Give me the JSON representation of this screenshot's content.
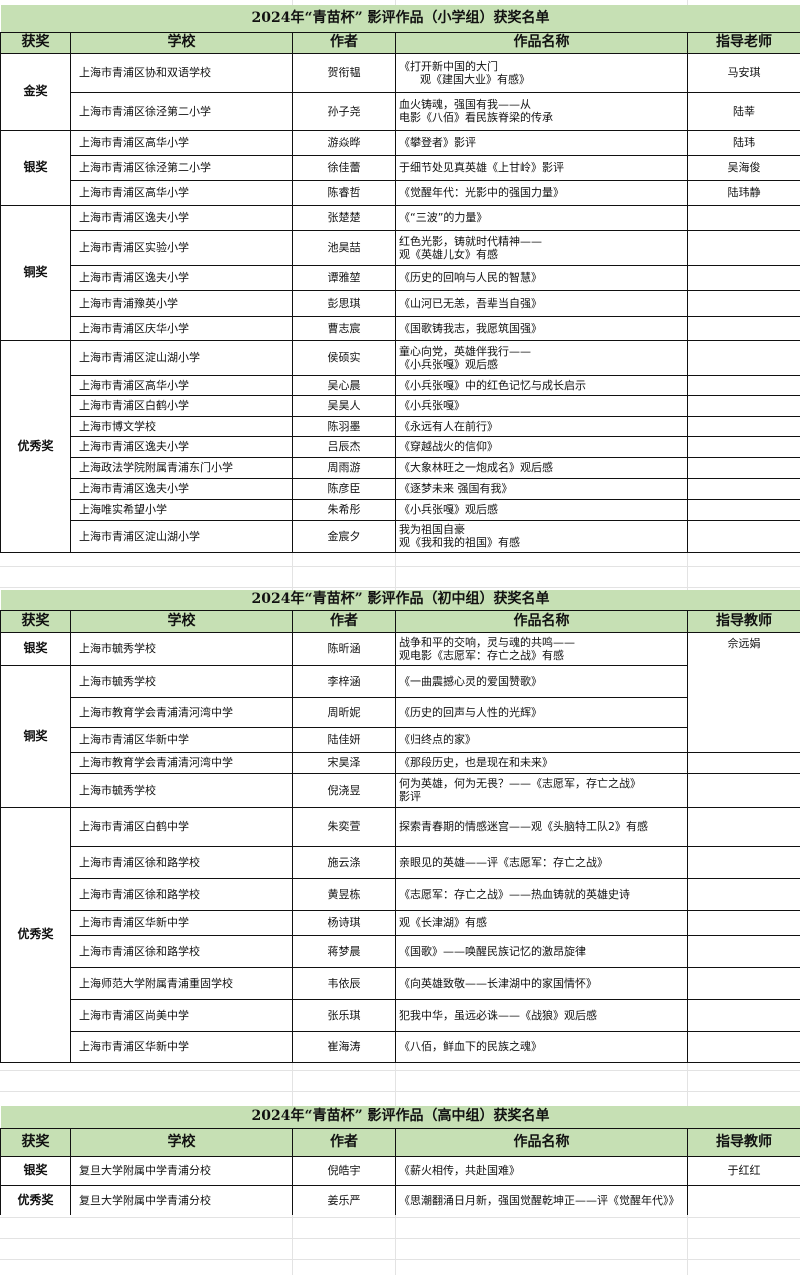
{
  "primary_color": "#c6e0b4",
  "headers_primary": [
    "获奖",
    "学校",
    "作者",
    "作品名称",
    "指导老师"
  ],
  "headers_other": [
    "获奖",
    "学校",
    "作者",
    "作品名称",
    "指导教师"
  ],
  "tables": [
    {
      "title": "2024年“青苗杯” 影评作品（小学组）获奖名单",
      "groups": [
        {
          "award": "金奖",
          "rows": [
            {
              "school": "上海市青浦区协和双语学校",
              "author": "贺衔韫",
              "work": "《打开新中国的大门\n      观《建国大业》有感》",
              "teacher": "马安琪"
            },
            {
              "school": "上海市青浦区徐泾第二小学",
              "author": "孙子尧",
              "work": "血火铸魂，强国有我——从\n电影《八佰》看民族脊梁的传承",
              "teacher": "陆莘"
            }
          ]
        },
        {
          "award": "银奖",
          "rows": [
            {
              "school": "上海市青浦区高华小学",
              "author": "游焱晔",
              "work": "《攀登者》影评",
              "teacher": "陆玮"
            },
            {
              "school": "上海市青浦区徐泾第二小学",
              "author": "徐佳蕾",
              "work": "于细节处见真英雄《上甘岭》影评",
              "teacher": "吴海俊"
            },
            {
              "school": "上海市青浦区高华小学",
              "author": "陈睿哲",
              "work": "《觉醒年代：光影中的强国力量》",
              "teacher": "陆玮静"
            }
          ]
        },
        {
          "award": "铜奖",
          "rows": [
            {
              "school": "上海市青浦区逸夫小学",
              "author": "张楚楚",
              "work": "《“三波”的力量》",
              "teacher": ""
            },
            {
              "school": "上海市青浦区实验小学",
              "author": "池昊喆",
              "work": "红色光影，铸就时代精神——\n观《英雄儿女》有感",
              "teacher": ""
            },
            {
              "school": "上海市青浦区逸夫小学",
              "author": "谭雅堃",
              "work": "《历史的回响与人民的智慧》",
              "teacher": ""
            },
            {
              "school": "上海市青浦豫英小学",
              "author": "彭思琪",
              "work": "《山河已无恙，吾辈当自强》",
              "teacher": ""
            },
            {
              "school": "上海市青浦区庆华小学",
              "author": "曹志宸",
              "work": "《国歌铸我志，我愿筑国强》",
              "teacher": ""
            }
          ]
        },
        {
          "award": "优秀奖",
          "rows": [
            {
              "school": "上海市青浦区淀山湖小学",
              "author": "侯硕实",
              "work": "童心向党，英雄伴我行——\n《小兵张嘎》观后感",
              "teacher": ""
            },
            {
              "school": "上海市青浦区高华小学",
              "author": "吴心晨",
              "work": "《小兵张嘎》中的红色记忆与成长启示",
              "teacher": ""
            },
            {
              "school": "上海市青浦区白鹤小学",
              "author": "吴昊人",
              "work": "《小兵张嘎》",
              "teacher": ""
            },
            {
              "school": "上海市博文学校",
              "author": "陈羽墨",
              "work": "《永远有人在前行》",
              "teacher": ""
            },
            {
              "school": "上海市青浦区逸夫小学",
              "author": "吕辰杰",
              "work": "《穿越战火的信仰》",
              "teacher": ""
            },
            {
              "school": "上海政法学院附属青浦东门小学",
              "author": "周雨游",
              "work": "《大象林旺之一炮成名》观后感",
              "teacher": ""
            },
            {
              "school": "上海市青浦区逸夫小学",
              "author": "陈彦臣",
              "work": "《逐梦未来 强国有我》",
              "teacher": ""
            },
            {
              "school": "上海唯实希望小学",
              "author": "朱希彤",
              "work": "《小兵张嘎》观后感",
              "teacher": ""
            },
            {
              "school": "上海市青浦区淀山湖小学",
              "author": "金宸夕",
              "work": "我为祖国自豪\n观《我和我的祖国》有感",
              "teacher": ""
            }
          ]
        }
      ]
    },
    {
      "title": "2024年“青苗杯”  影评作品（初中组）获奖名单",
      "groups": [
        {
          "award": "银奖",
          "rows": [
            {
              "school": "上海市毓秀学校",
              "author": "陈昕涵",
              "work": "战争和平的交响，灵与魂的共鸣——\n观电影《志愿军：存亡之战》有感",
              "teacher": "佘远娟"
            }
          ]
        },
        {
          "award": "铜奖",
          "rows": [
            {
              "school": "上海市毓秀学校",
              "author": "李梓涵",
              "work": "《一曲震撼心灵的爱国赞歌》",
              "teacher": ""
            },
            {
              "school": "上海市教育学会青浦清河湾中学",
              "author": "周昕妮",
              "work": "《历史的回声与人性的光辉》",
              "teacher": ""
            },
            {
              "school": "上海市青浦区华新中学",
              "author": "陆佳妍",
              "work": "《归终点的家》",
              "teacher": ""
            },
            {
              "school": "上海市教育学会青浦清河湾中学",
              "author": "宋昊泽",
              "work": "《那段历史，也是现在和未来》",
              "teacher": ""
            },
            {
              "school": "上海市毓秀学校",
              "author": "倪浇昱",
              "work": "何为英雄，何为无畏？——《志愿军，存亡之战》\n影评",
              "teacher": ""
            }
          ]
        },
        {
          "award": "优秀奖",
          "rows": [
            {
              "school": "上海市青浦区白鹤中学",
              "author": "朱奕萱",
              "work": "探索青春期的情感迷宫——观《头脑特工队2》有感",
              "teacher": ""
            },
            {
              "school": "上海市青浦区徐和路学校",
              "author": "施云涤",
              "work": "亲眼见的英雄——评《志愿军：存亡之战》",
              "teacher": ""
            },
            {
              "school": "上海市青浦区徐和路学校",
              "author": "黄昱栋",
              "work": "《志愿军：存亡之战》——热血铸就的英雄史诗",
              "teacher": ""
            },
            {
              "school": "上海市青浦区华新中学",
              "author": "杨诗琪",
              "work": "观《长津湖》有感",
              "teacher": ""
            },
            {
              "school": "上海市青浦区徐和路学校",
              "author": "蒋梦晨",
              "work": "《国歌》——唤醒民族记忆的激昂旋律",
              "teacher": ""
            },
            {
              "school": "上海师范大学附属青浦重固学校",
              "author": "韦依辰",
              "work": "《向英雄致敬——长津湖中的家国情怀》",
              "teacher": ""
            },
            {
              "school": "上海市青浦区尚美中学",
              "author": "张乐琪",
              "work": "犯我中华，虽远必诛——《战狼》观后感",
              "teacher": ""
            },
            {
              "school": "上海市青浦区华新中学",
              "author": "崔海涛",
              "work": "《八佰，鲜血下的民族之魂》",
              "teacher": ""
            }
          ]
        }
      ]
    },
    {
      "title": "2024年“青苗杯”  影评作品（高中组）获奖名单",
      "groups": [
        {
          "award": "银奖",
          "rows": [
            {
              "school": "复旦大学附属中学青浦分校",
              "author": "倪皓宇",
              "work": "《薪火相传，共赴国难》",
              "teacher": "于红红"
            }
          ]
        },
        {
          "award": "优秀奖",
          "rows": [
            {
              "school": "复旦大学附属中学青浦分校",
              "author": "姜乐严",
              "work": "《思潮翻涌日月新，强国觉醒乾坤正——评《觉醒年代》》",
              "teacher": ""
            }
          ]
        }
      ]
    }
  ]
}
